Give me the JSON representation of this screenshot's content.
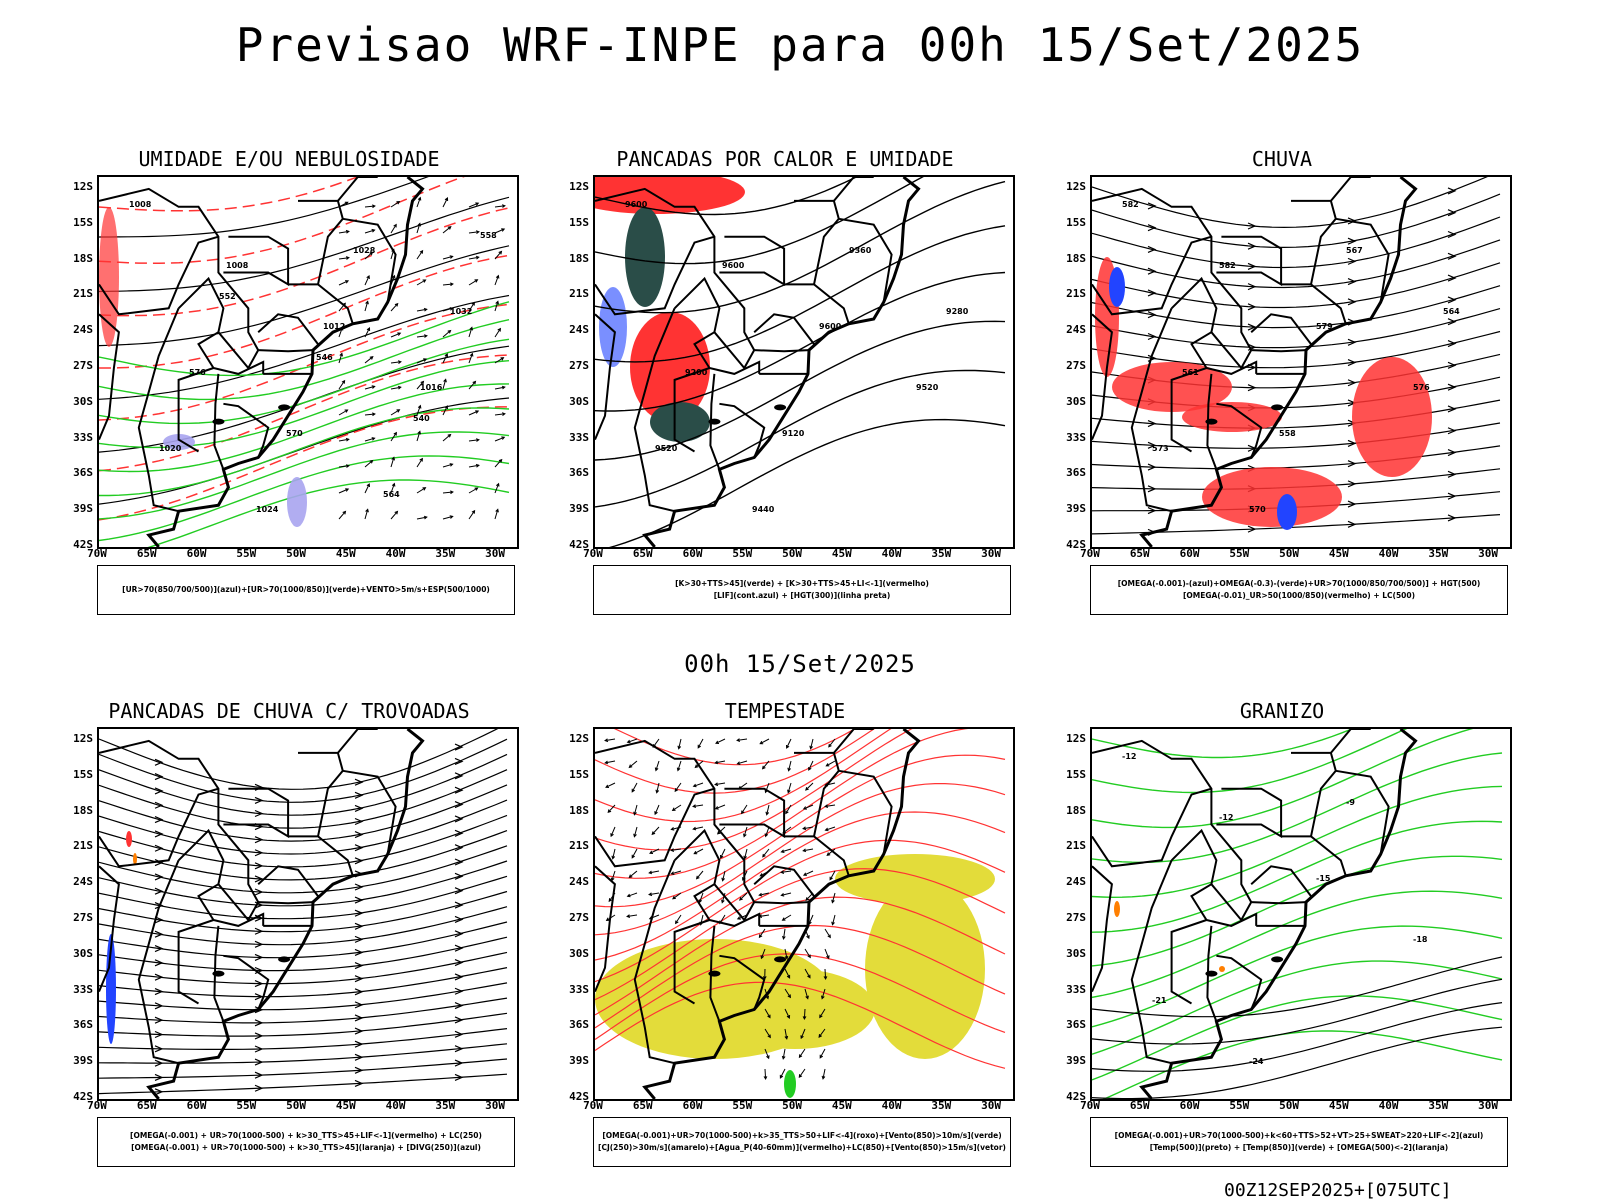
{
  "header": {
    "title": "Previsao WRF-INPE  para 00h 15/Set/2025",
    "mid_title": "00h 15/Set/2025",
    "footer": "00Z12SEP2025+[075UTC]"
  },
  "axes": {
    "lat_labels": [
      "12S",
      "15S",
      "18S",
      "21S",
      "24S",
      "27S",
      "30S",
      "33S",
      "36S",
      "39S",
      "42S"
    ],
    "lon_labels": [
      "70W",
      "65W",
      "60W",
      "55W",
      "50W",
      "45W",
      "40W",
      "35W",
      "30W"
    ]
  },
  "colors": {
    "ocean_contour": "#000000",
    "humid_green": "#22cc22",
    "rain_red": "#ff3333",
    "blue": "#2244ff",
    "dark_teal": "#2a4d48",
    "yellow": "#e3dc3a",
    "lilac": "#a9a4f0",
    "orange": "#ff7f00"
  },
  "panels": [
    {
      "id": "umidade",
      "title": "UMIDADE E/OU NEBULOSIDADE",
      "legend": [
        "[UR>70(850/700/500)](azul)+[UR>70(1000/850)](verde)+VENTO>5m/s+ESP(500/1000)"
      ],
      "contour_labels": [
        "1008",
        "1008",
        "1012",
        "1016",
        "1020",
        "1024",
        "1028",
        "1032",
        "576",
        "570",
        "564",
        "558",
        "552",
        "546",
        "540"
      ]
    },
    {
      "id": "pancadas-calor",
      "title": "PANCADAS POR CALOR E UMIDADE",
      "legend": [
        "[K>30+TTS>45](verde) + [K>30+TTS>45+LI<-1](vermelho)",
        "[LIF](cont.azul) + [HGT(300)](linha preta)"
      ],
      "contour_labels": [
        "9600",
        "9600",
        "9600",
        "9520",
        "9520",
        "9440",
        "9360",
        "9280",
        "9200",
        "9120"
      ]
    },
    {
      "id": "chuva",
      "title": "CHUVA",
      "legend": [
        "[OMEGA(-0.001)-(azul)+OMEGA(-0.3)-(verde)+UR>70(1000/850/700/500)] + HGT(500)",
        "[OMEGA(-0.01)_UR>50(1000/850)(vermelho) + LC(500)"
      ],
      "contour_labels": [
        "582",
        "582",
        "579",
        "576",
        "573",
        "570",
        "567",
        "564",
        "561",
        "558"
      ]
    },
    {
      "id": "pancadas-trovoadas",
      "title": "PANCADAS DE CHUVA C/ TROVOADAS",
      "legend": [
        "[OMEGA(-0.001) + UR>70(1000-500) + k>30_TTS>45+LIF<-1](vermelho) + LC(250)",
        "[OMEGA(-0.001) + UR>70(1000-500) + k>30_TTS>45](laranja) + [DIVG(250)](azul)"
      ],
      "contour_labels": []
    },
    {
      "id": "tempestade",
      "title": "TEMPESTADE",
      "legend": [
        "[OMEGA(-0.001)+UR>70(1000-500)+k>35_TTS>50+LIF<-4](roxo)+[Vento(850)>10m/s](verde)",
        "[CJ(250)>30m/s](amarelo)+[Agua_P(40-60mm)](vermelho)+LC(850)+[Vento(850)>15m/s](vetor)"
      ],
      "contour_labels": []
    },
    {
      "id": "granizo",
      "title": "GRANIZO",
      "legend": [
        "[OMEGA(-0.001)+UR>70(1000-500)+k<60+TTS>52+VT>25+SWEAT>220+LIF<-2](azul)",
        "[Temp(500)](preto) + [Temp(850)](verde) + [OMEGA(500)<-2](laranja)"
      ],
      "contour_labels": [
        "-12",
        "-12",
        "-15",
        "-18",
        "-21",
        "-24",
        "-9"
      ]
    }
  ]
}
